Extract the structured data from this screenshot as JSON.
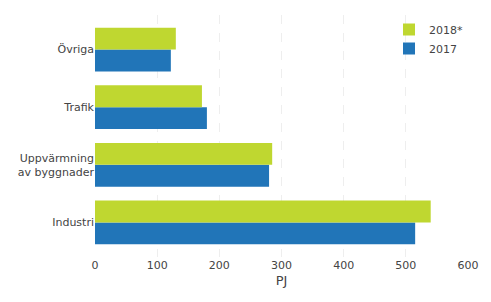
{
  "chart_data": {
    "type": "bar",
    "orientation": "horizontal",
    "categories": [
      "Industri",
      "Uppvärmning\nav byggnader",
      "Trafik",
      "Övriga"
    ],
    "series": [
      {
        "name": "2018*",
        "color": "#bfd730",
        "values": [
          540,
          285,
          172,
          130
        ]
      },
      {
        "name": "2017",
        "color": "#2175b8",
        "values": [
          515,
          280,
          180,
          122
        ]
      }
    ],
    "xlabel": "PJ",
    "xlim": [
      0,
      600
    ],
    "xticks": [
      0,
      100,
      200,
      300,
      400,
      500,
      600
    ],
    "grid": true,
    "legend": "upper right"
  }
}
